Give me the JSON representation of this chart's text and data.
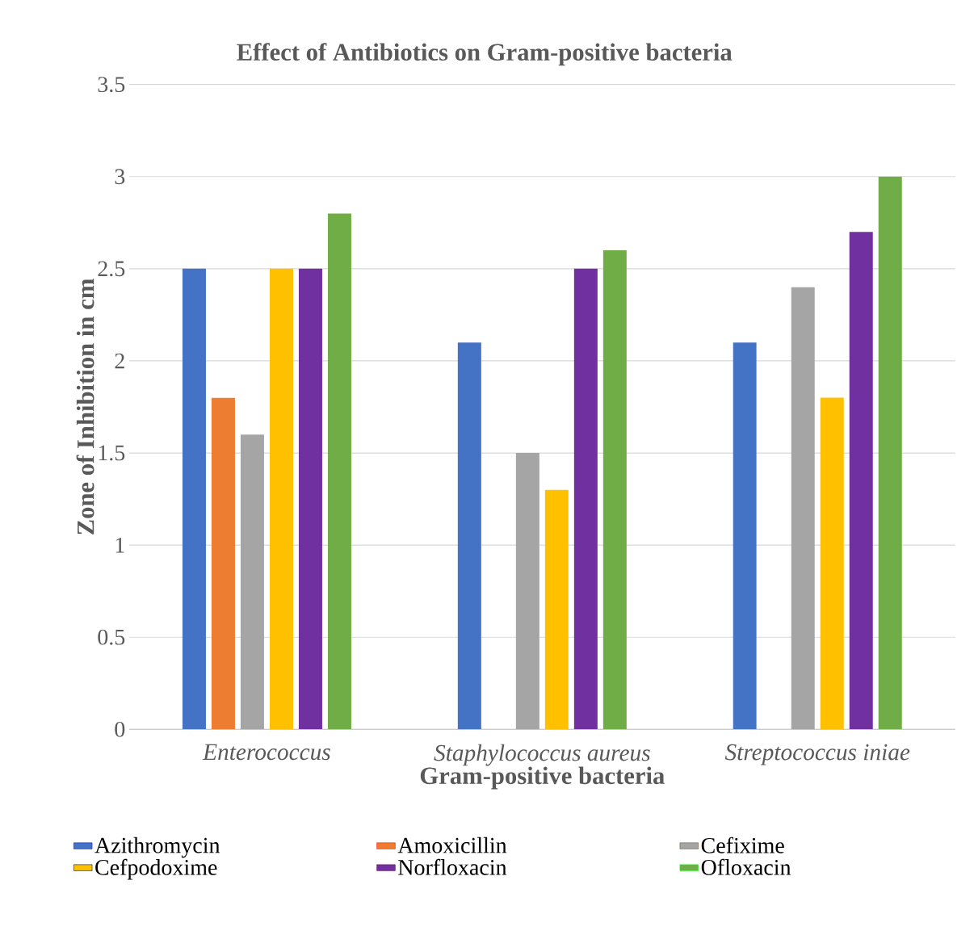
{
  "chart_data": {
    "type": "bar",
    "title": "Effect of Antibiotics on Gram-positive bacteria",
    "xlabel": "Gram-positive bacteria",
    "ylabel": "Zone of Inhibition in cm",
    "categories": [
      "Enterococcus",
      "Staphylococcus aureus",
      "Streptococcus iniae"
    ],
    "series": [
      {
        "name": "Azithromycin",
        "color": "#4472c4",
        "values": [
          2.5,
          2.1,
          2.1
        ]
      },
      {
        "name": "Amoxicillin",
        "color": "#ed7d31",
        "values": [
          1.8,
          null,
          null
        ]
      },
      {
        "name": "Cefixime",
        "color": "#a5a5a5",
        "values": [
          1.6,
          1.5,
          2.4
        ]
      },
      {
        "name": "Cefpodoxime",
        "color": "#ffc000",
        "values": [
          2.5,
          1.3,
          1.8
        ]
      },
      {
        "name": "Norfloxacin",
        "color": "#7030a0",
        "values": [
          2.5,
          2.5,
          2.7
        ]
      },
      {
        "name": "Ofloxacin",
        "color": "#70ad47",
        "values": [
          2.8,
          2.6,
          3.0
        ]
      }
    ],
    "ylim": [
      0,
      3.5
    ],
    "yticks": [
      0,
      0.5,
      1,
      1.5,
      2,
      2.5,
      3,
      3.5
    ],
    "grid": "y",
    "legend": "bottom"
  }
}
